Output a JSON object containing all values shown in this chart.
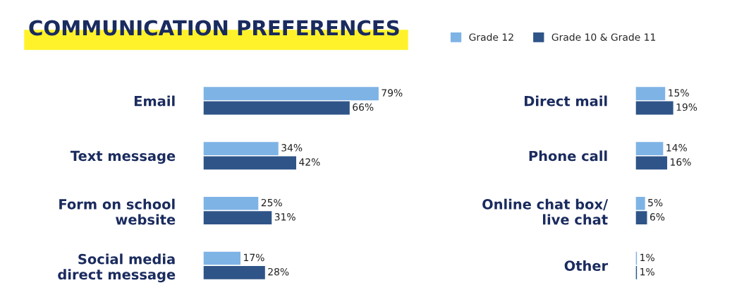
{
  "chart_data": [
    {
      "type": "bar",
      "orientation": "horizontal",
      "title": "COMMUNICATION PREFERENCES",
      "categories": [
        "Email",
        "Text message",
        "Form on school\nwebsite",
        "Social media\ndirect message"
      ],
      "tick_labels": "y",
      "legend": "top",
      "series": [
        {
          "name": "Grade 12",
          "color": "#7eb3e6",
          "values": [
            79,
            34,
            25,
            17
          ],
          "value_labels": [
            "79%",
            "34%",
            "25%",
            "17%"
          ]
        },
        {
          "name": "Grade 10 & Grade 11",
          "color": "#2f5488",
          "values": [
            66,
            42,
            31,
            28
          ],
          "value_labels": [
            "66%",
            "42%",
            "31%",
            "28%"
          ]
        }
      ]
    },
    {
      "type": "bar",
      "orientation": "horizontal",
      "categories": [
        "Direct mail",
        "Phone call",
        "Online chat box/\nlive chat",
        "Other"
      ],
      "tick_labels": "y",
      "series": [
        {
          "color": "#7eb3e6",
          "values": [
            15,
            14,
            5,
            1
          ],
          "value_labels": [
            "15%",
            "14%",
            "5%",
            "1%"
          ]
        },
        {
          "color": "#2f5488",
          "values": [
            19,
            16,
            6,
            1
          ],
          "value_labels": [
            "19%",
            "16%",
            "6%",
            "1%"
          ]
        }
      ]
    }
  ]
}
